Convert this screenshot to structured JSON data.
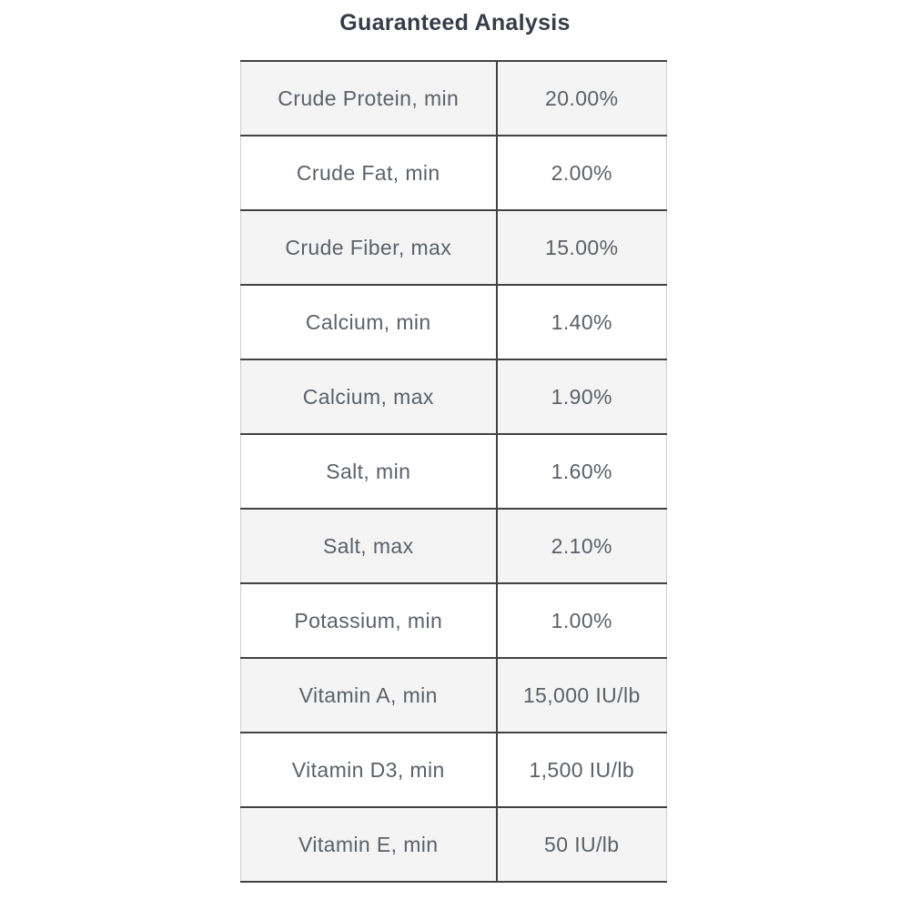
{
  "title": "Guaranteed Analysis",
  "colors": {
    "row_alt_bg": "#f4f4f4",
    "row_bg": "#ffffff",
    "border_dark": "#424242",
    "border_light": "#cfcfcf",
    "title_text": "#373d48",
    "cell_text": "#5b6169"
  },
  "table": {
    "columns": [
      "nutrient",
      "amount"
    ],
    "rows": [
      {
        "label": "Crude Protein, min",
        "value": "20.00%"
      },
      {
        "label": "Crude Fat, min",
        "value": "2.00%"
      },
      {
        "label": "Crude Fiber, max",
        "value": "15.00%"
      },
      {
        "label": "Calcium, min",
        "value": "1.40%"
      },
      {
        "label": "Calcium, max",
        "value": "1.90%"
      },
      {
        "label": "Salt, min",
        "value": "1.60%"
      },
      {
        "label": "Salt, max",
        "value": "2.10%"
      },
      {
        "label": "Potassium, min",
        "value": "1.00%"
      },
      {
        "label": "Vitamin A, min",
        "value": "15,000 IU/lb"
      },
      {
        "label": "Vitamin D3, min",
        "value": "1,500 IU/lb"
      },
      {
        "label": "Vitamin E, min",
        "value": "50 IU/lb"
      }
    ]
  }
}
